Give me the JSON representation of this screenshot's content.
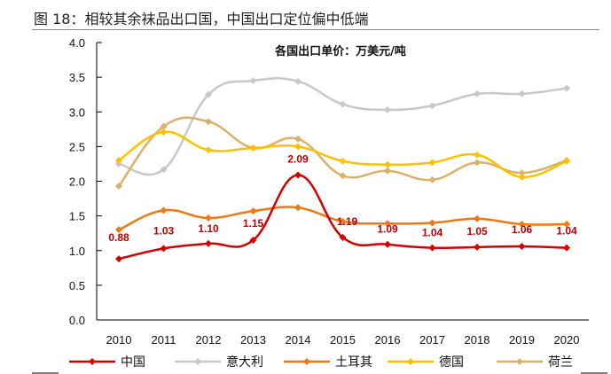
{
  "figure_title": "图 18：相较其余袜品出口国，中国出口定位偏中低端",
  "chart_data": {
    "type": "line",
    "title": "各国出口单价：万美元/吨",
    "xlabel": "",
    "ylabel": "",
    "categories": [
      "2010",
      "2011",
      "2012",
      "2013",
      "2014",
      "2015",
      "2016",
      "2017",
      "2018",
      "2019",
      "2020"
    ],
    "ylim": [
      0,
      4
    ],
    "yticks": [
      "0.0",
      "0.5",
      "1.0",
      "1.5",
      "2.0",
      "2.5",
      "3.0",
      "3.5",
      "4.0"
    ],
    "grid": false,
    "legend": "bottom",
    "series": [
      {
        "name": "中国",
        "color": "#d40000",
        "values": [
          0.88,
          1.03,
          1.1,
          1.15,
          2.09,
          1.19,
          1.09,
          1.04,
          1.05,
          1.06,
          1.04
        ],
        "labels": [
          "0.88",
          "1.03",
          "1.10",
          "1.15",
          "2.09",
          "1.19",
          "1.09",
          "1.04",
          "1.05",
          "1.06",
          "1.04"
        ]
      },
      {
        "name": "意大利",
        "color": "#c8c8c8",
        "values": [
          2.25,
          2.17,
          3.25,
          3.45,
          3.44,
          3.11,
          3.03,
          3.09,
          3.26,
          3.26,
          3.34
        ]
      },
      {
        "name": "土耳其",
        "color": "#f07814",
        "values": [
          1.3,
          1.58,
          1.47,
          1.57,
          1.62,
          1.42,
          1.39,
          1.4,
          1.46,
          1.38,
          1.38
        ]
      },
      {
        "name": "德国",
        "color": "#ffc000",
        "values": [
          2.3,
          2.71,
          2.45,
          2.48,
          2.5,
          2.29,
          2.24,
          2.27,
          2.38,
          2.06,
          2.29
        ]
      },
      {
        "name": "荷兰",
        "color": "#d9b26a",
        "values": [
          1.93,
          2.79,
          2.86,
          2.48,
          2.61,
          2.08,
          2.15,
          2.02,
          2.27,
          2.12,
          2.3
        ]
      }
    ]
  }
}
